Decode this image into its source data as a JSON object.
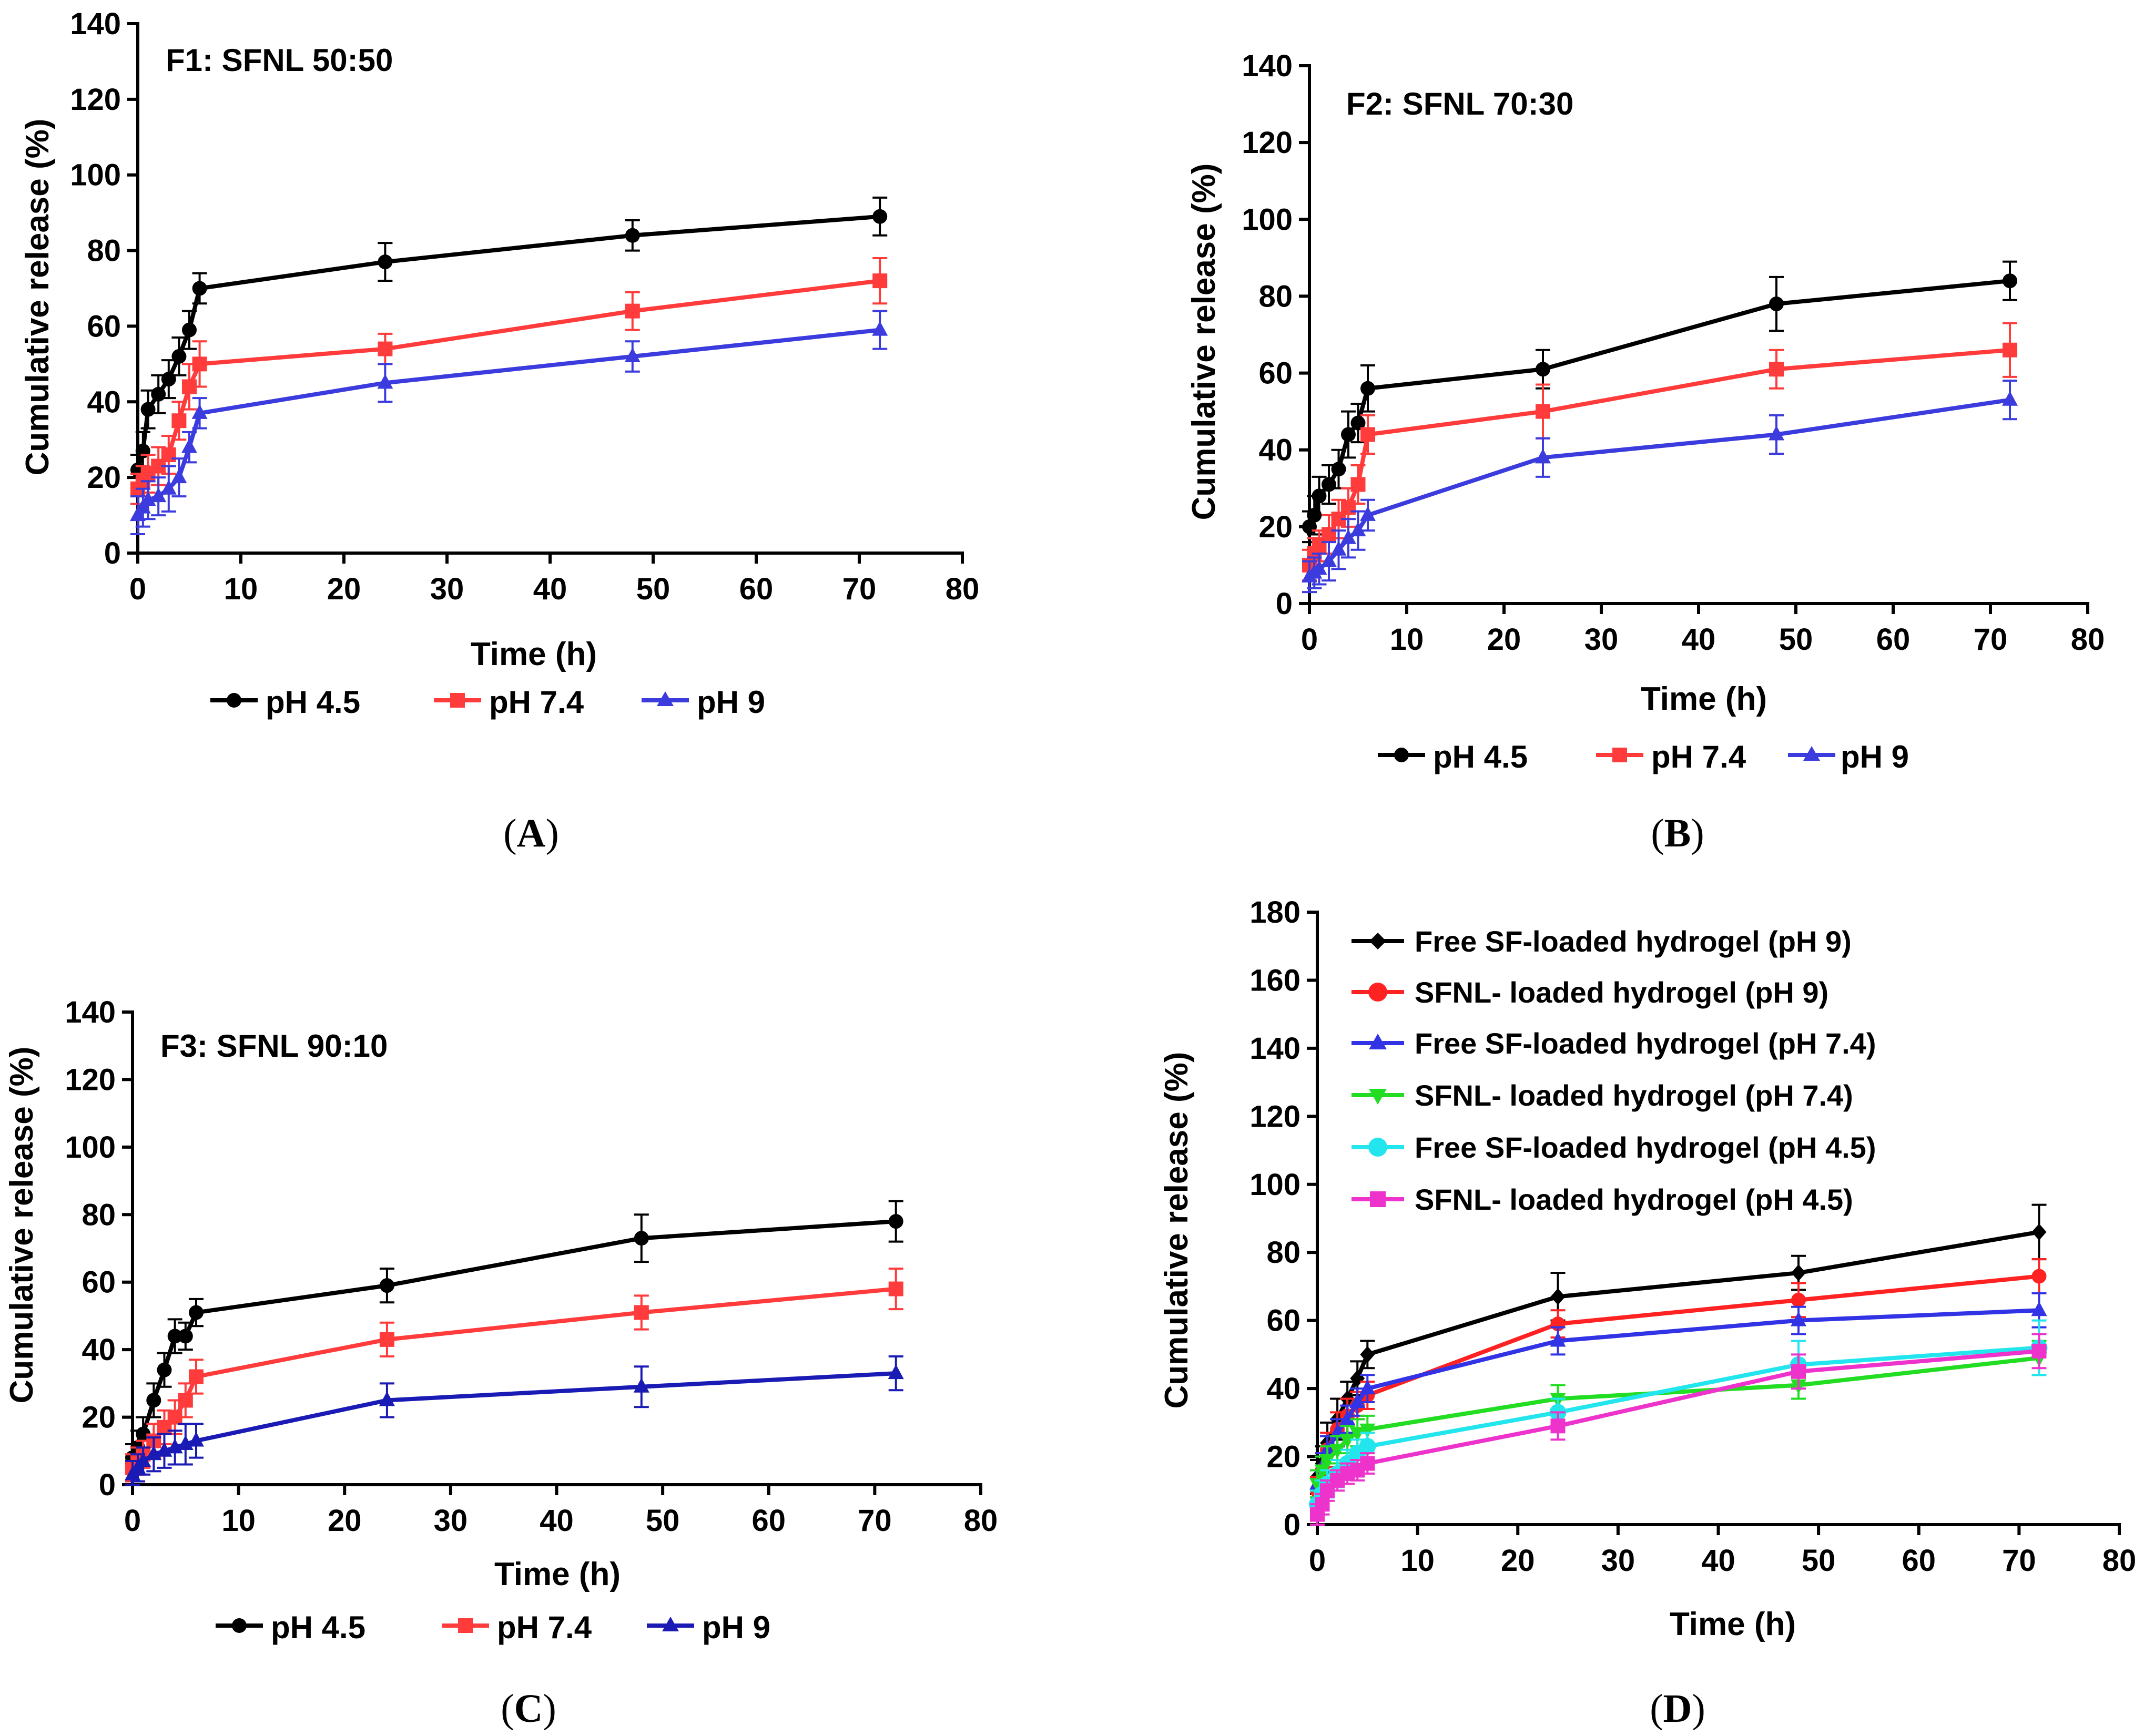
{
  "figure": {
    "panels": [
      {
        "id": "A",
        "caption_letter": "A",
        "chart_data": {
          "type": "line",
          "title": "F1: SFNL 50:50",
          "xlabel": "Time (h)",
          "ylabel": "Cumulative release (%)",
          "xlim": [
            0,
            80
          ],
          "ylim": [
            0,
            140
          ],
          "xticks": [
            0,
            10,
            20,
            30,
            40,
            50,
            60,
            70,
            80
          ],
          "yticks": [
            0,
            20,
            40,
            60,
            80,
            100,
            120,
            140
          ],
          "legend_position": "bottom",
          "series": [
            {
              "name": "pH 4.5",
              "color": "#000000",
              "marker": "circle",
              "x": [
                0,
                0.5,
                1,
                2,
                3,
                4,
                5,
                6,
                24,
                48,
                72
              ],
              "y": [
                22,
                27,
                38,
                42,
                46,
                52,
                59,
                70,
                77,
                84,
                89
              ],
              "err": [
                4,
                5,
                5,
                5,
                5,
                5,
                5,
                4,
                5,
                4,
                5
              ]
            },
            {
              "name": "pH 7.4",
              "color": "#ff3b3b",
              "marker": "square",
              "x": [
                0,
                0.5,
                1,
                2,
                3,
                4,
                5,
                6,
                24,
                48,
                72
              ],
              "y": [
                17,
                19,
                21,
                23,
                26,
                35,
                44,
                50,
                54,
                64,
                72
              ],
              "err": [
                4,
                4,
                5,
                5,
                5,
                5,
                6,
                6,
                4,
                5,
                6
              ]
            },
            {
              "name": "pH 9",
              "color": "#3b3bde",
              "marker": "triangle",
              "x": [
                0,
                0.5,
                1,
                2,
                3,
                4,
                5,
                6,
                24,
                48,
                72
              ],
              "y": [
                10,
                12,
                14,
                15,
                17,
                20,
                28,
                37,
                45,
                52,
                59
              ],
              "err": [
                5,
                5,
                5,
                5,
                6,
                5,
                4,
                4,
                5,
                4,
                5
              ]
            }
          ]
        }
      },
      {
        "id": "B",
        "caption_letter": "B",
        "chart_data": {
          "type": "line",
          "title": "F2: SFNL 70:30",
          "xlabel": "Time (h)",
          "ylabel": "Cumulative release (%)",
          "xlim": [
            0,
            80
          ],
          "ylim": [
            0,
            140
          ],
          "xticks": [
            0,
            10,
            20,
            30,
            40,
            50,
            60,
            70,
            80
          ],
          "yticks": [
            0,
            20,
            40,
            60,
            80,
            100,
            120,
            140
          ],
          "legend_position": "bottom",
          "series": [
            {
              "name": "pH 4.5",
              "color": "#000000",
              "marker": "circle",
              "x": [
                0,
                0.5,
                1,
                2,
                3,
                4,
                5,
                6,
                24,
                48,
                72
              ],
              "y": [
                20,
                23,
                28,
                31,
                35,
                44,
                47,
                56,
                61,
                78,
                84
              ],
              "err": [
                4,
                5,
                5,
                5,
                5,
                6,
                5,
                6,
                5,
                7,
                5
              ]
            },
            {
              "name": "pH 7.4",
              "color": "#ff3b3b",
              "marker": "square",
              "x": [
                0,
                0.5,
                1,
                2,
                3,
                4,
                5,
                6,
                24,
                48,
                72
              ],
              "y": [
                10,
                13,
                15,
                18,
                22,
                25,
                31,
                44,
                50,
                61,
                66
              ],
              "err": [
                4,
                4,
                4,
                5,
                5,
                5,
                5,
                5,
                7,
                5,
                7
              ]
            },
            {
              "name": "pH 9",
              "color": "#3b3bde",
              "marker": "triangle",
              "x": [
                0,
                0.5,
                1,
                2,
                3,
                4,
                5,
                6,
                24,
                48,
                72
              ],
              "y": [
                7,
                8,
                9,
                11,
                14,
                17,
                19,
                23,
                38,
                44,
                53
              ],
              "err": [
                4,
                4,
                4,
                5,
                5,
                5,
                5,
                4,
                5,
                5,
                5
              ]
            }
          ]
        }
      },
      {
        "id": "C",
        "caption_letter": "C",
        "chart_data": {
          "type": "line",
          "title": "F3: SFNL 90:10",
          "xlabel": "Time (h)",
          "ylabel": "Cumulative release (%)",
          "xlim": [
            0,
            80
          ],
          "ylim": [
            0,
            140
          ],
          "xticks": [
            0,
            10,
            20,
            30,
            40,
            50,
            60,
            70,
            80
          ],
          "yticks": [
            0,
            20,
            40,
            60,
            80,
            100,
            120,
            140
          ],
          "legend_position": "bottom",
          "series": [
            {
              "name": "pH 4.5",
              "color": "#000000",
              "marker": "circle",
              "x": [
                0,
                0.5,
                1,
                2,
                3,
                4,
                5,
                6,
                24,
                48,
                72
              ],
              "y": [
                8,
                11,
                15,
                25,
                34,
                44,
                44,
                51,
                59,
                73,
                78
              ],
              "err": [
                4,
                5,
                5,
                5,
                5,
                5,
                4,
                4,
                5,
                7,
                6
              ]
            },
            {
              "name": "pH 7.4",
              "color": "#ff3b3b",
              "marker": "square",
              "x": [
                0,
                0.5,
                1,
                2,
                3,
                4,
                5,
                6,
                24,
                48,
                72
              ],
              "y": [
                5,
                7,
                9,
                13,
                17,
                20,
                25,
                32,
                43,
                51,
                58
              ],
              "err": [
                4,
                4,
                4,
                5,
                5,
                5,
                5,
                5,
                5,
                5,
                6
              ]
            },
            {
              "name": "pH 9",
              "color": "#1a1ab5",
              "marker": "triangle",
              "x": [
                0,
                0.5,
                1,
                2,
                3,
                4,
                5,
                6,
                24,
                48,
                72
              ],
              "y": [
                3,
                5,
                7,
                9,
                10,
                11,
                12,
                13,
                25,
                29,
                33
              ],
              "err": [
                4,
                4,
                4,
                5,
                5,
                5,
                6,
                5,
                5,
                6,
                5
              ]
            }
          ]
        }
      },
      {
        "id": "D",
        "caption_letter": "D",
        "chart_data": {
          "type": "line",
          "title": "",
          "xlabel": "Time (h)",
          "ylabel": "Cumulative release (%)",
          "xlim": [
            0,
            80
          ],
          "ylim": [
            0,
            180
          ],
          "xticks": [
            0,
            10,
            20,
            30,
            40,
            50,
            60,
            70,
            80
          ],
          "yticks": [
            0,
            20,
            40,
            60,
            80,
            100,
            120,
            140,
            160,
            180
          ],
          "legend_position": "top-left",
          "series": [
            {
              "name": "Free SF-loaded hydrogel (pH 9)",
              "color": "#000000",
              "marker": "diamond",
              "x": [
                0,
                0.5,
                1,
                2,
                3,
                4,
                5,
                24,
                48,
                72
              ],
              "y": [
                14,
                18,
                24,
                31,
                37,
                43,
                50,
                67,
                74,
                86
              ],
              "err": [
                5,
                5,
                6,
                6,
                5,
                5,
                4,
                7,
                5,
                8
              ]
            },
            {
              "name": "SFNL- loaded hydrogel (pH 9)",
              "color": "#ff2222",
              "marker": "circle",
              "x": [
                0,
                0.5,
                1,
                2,
                3,
                4,
                5,
                24,
                48,
                72
              ],
              "y": [
                10,
                16,
                22,
                28,
                32,
                35,
                38,
                59,
                66,
                73
              ],
              "err": [
                4,
                4,
                5,
                5,
                5,
                4,
                4,
                4,
                5,
                5
              ]
            },
            {
              "name": "Free SF-loaded hydrogel (pH 7.4)",
              "color": "#3333e6",
              "marker": "triangle",
              "x": [
                0,
                0.5,
                1,
                2,
                3,
                4,
                5,
                24,
                48,
                72
              ],
              "y": [
                12,
                17,
                22,
                27,
                31,
                36,
                40,
                54,
                60,
                63
              ],
              "err": [
                4,
                4,
                4,
                4,
                4,
                4,
                4,
                4,
                4,
                5
              ]
            },
            {
              "name": "SFNL- loaded hydrogel (pH 7.4)",
              "color": "#22dd22",
              "marker": "triangle-down",
              "x": [
                0,
                0.5,
                1,
                2,
                3,
                4,
                5,
                24,
                48,
                72
              ],
              "y": [
                12,
                16,
                19,
                22,
                25,
                27,
                28,
                37,
                41,
                49
              ],
              "err": [
                4,
                4,
                4,
                4,
                4,
                4,
                4,
                4,
                4,
                5
              ]
            },
            {
              "name": "Free SF-loaded hydrogel (pH 4.5)",
              "color": "#22e5ee",
              "marker": "hexagon",
              "x": [
                0,
                0.5,
                1,
                2,
                3,
                4,
                5,
                24,
                48,
                72
              ],
              "y": [
                6,
                9,
                12,
                15,
                18,
                21,
                23,
                33,
                47,
                52
              ],
              "err": [
                4,
                4,
                4,
                4,
                4,
                4,
                4,
                4,
                7,
                8
              ]
            },
            {
              "name": "SFNL- loaded hydrogel (pH 4.5)",
              "color": "#ee33cc",
              "marker": "square",
              "x": [
                0,
                0.5,
                1,
                2,
                3,
                4,
                5,
                24,
                48,
                72
              ],
              "y": [
                3,
                6,
                10,
                13,
                15,
                16,
                18,
                29,
                45,
                51
              ],
              "err": [
                3,
                3,
                3,
                3,
                3,
                3,
                3,
                4,
                5,
                5
              ]
            }
          ]
        }
      }
    ]
  }
}
